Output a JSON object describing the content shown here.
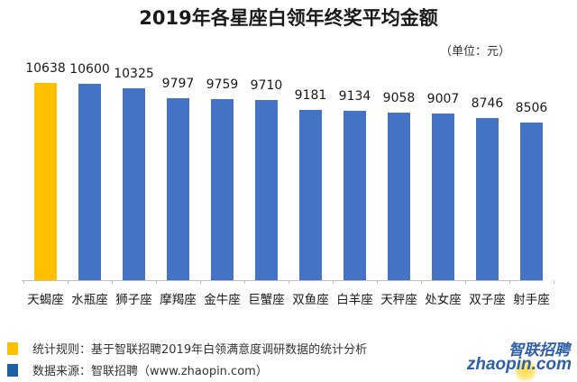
{
  "chart_data": {
    "type": "bar",
    "title": "2019年各星座白领年终奖平均金额",
    "unit_label": "（单位：元）",
    "xlabel": "",
    "ylabel": "",
    "ylim": [
      0,
      11000
    ],
    "grid": false,
    "categories": [
      "天蝎座",
      "水瓶座",
      "狮子座",
      "摩羯座",
      "金牛座",
      "巨蟹座",
      "双鱼座",
      "白羊座",
      "天秤座",
      "处女座",
      "双子座",
      "射手座"
    ],
    "values": [
      10638,
      10600,
      10325,
      9797,
      9759,
      9710,
      9181,
      9134,
      9058,
      9007,
      8746,
      8506
    ],
    "value_labels": [
      "10638",
      "10600",
      "10325",
      "9797",
      "9759",
      "9710",
      "9181",
      "9134",
      "9058",
      "9007",
      "8746",
      "8506"
    ],
    "highlight_index": 0,
    "colors": {
      "highlight": "#FFC000",
      "default": "#4472C4",
      "axis": "#BFBFBF"
    }
  },
  "legend": [
    {
      "color": "#FFC000",
      "text": "统计规则：基于智联招聘2019年白领满意度调研数据的统计分析"
    },
    {
      "color": "#1F5FA8",
      "text": "数据来源：智联招聘（www.zhaopin.com）"
    }
  ],
  "logo": {
    "cn": "智联招聘",
    "en": "zhaopin.com"
  }
}
